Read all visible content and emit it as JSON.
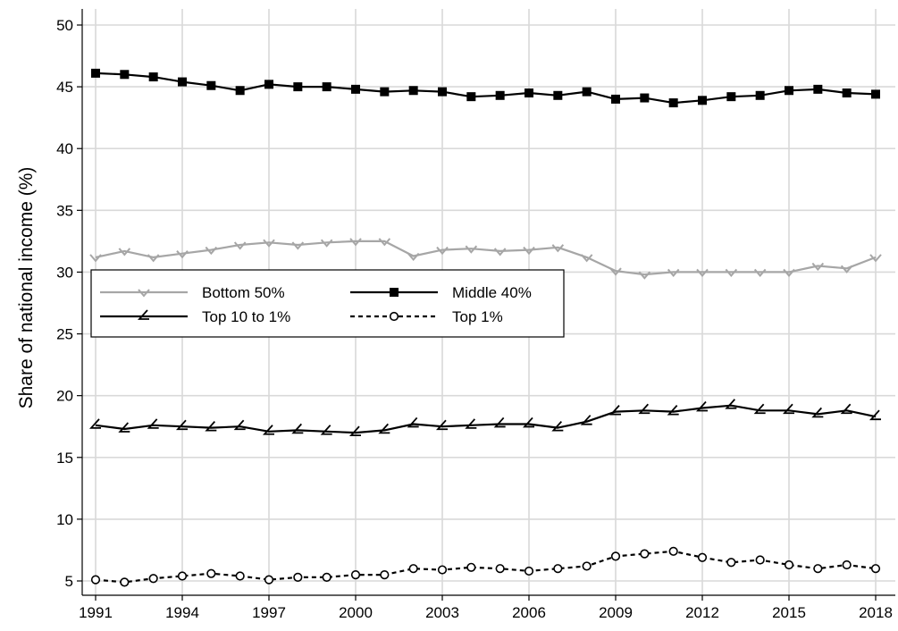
{
  "chart_data": {
    "type": "line",
    "title": "",
    "xlabel": "",
    "ylabel": "Share of national income (%)",
    "x": [
      1991,
      1992,
      1993,
      1994,
      1995,
      1996,
      1997,
      1998,
      1999,
      2000,
      2001,
      2002,
      2003,
      2004,
      2005,
      2006,
      2007,
      2008,
      2009,
      2010,
      2011,
      2012,
      2013,
      2014,
      2015,
      2016,
      2017,
      2018
    ],
    "x_ticks": [
      "1991",
      "1994",
      "1997",
      "2000",
      "2003",
      "2006",
      "2009",
      "2012",
      "2015",
      "2018"
    ],
    "y_ticks": [
      "5",
      "10",
      "15",
      "20",
      "25",
      "30",
      "35",
      "40",
      "45",
      "50"
    ],
    "xlim": [
      1991,
      2018
    ],
    "ylim": [
      5,
      50
    ],
    "grid": true,
    "legend_position": "middle-left",
    "series": [
      {
        "name": "Bottom 50%",
        "color": "#a6a6a6",
        "marker": "diamond-open",
        "line_style": "solid",
        "values": [
          31.2,
          31.7,
          31.2,
          31.5,
          31.8,
          32.2,
          32.4,
          32.2,
          32.4,
          32.5,
          32.5,
          31.3,
          31.8,
          31.9,
          31.7,
          31.8,
          32.0,
          31.2,
          30.1,
          29.8,
          30.0,
          30.0,
          30.0,
          30.0,
          30.0,
          30.5,
          30.3,
          31.2
        ]
      },
      {
        "name": "Middle 40%",
        "color": "#000000",
        "marker": "square-filled",
        "line_style": "solid",
        "values": [
          46.1,
          46.0,
          45.8,
          45.4,
          45.1,
          44.7,
          45.2,
          45.0,
          45.0,
          44.8,
          44.6,
          44.7,
          44.6,
          44.2,
          44.3,
          44.5,
          44.3,
          44.6,
          44.0,
          44.1,
          43.7,
          43.9,
          44.2,
          44.3,
          44.7,
          44.8,
          44.5,
          44.4
        ]
      },
      {
        "name": "Top 10 to 1%",
        "color": "#000000",
        "marker": "angle",
        "line_style": "solid",
        "values": [
          17.6,
          17.3,
          17.6,
          17.5,
          17.4,
          17.5,
          17.1,
          17.2,
          17.1,
          17.0,
          17.2,
          17.7,
          17.5,
          17.6,
          17.7,
          17.7,
          17.4,
          17.9,
          18.7,
          18.8,
          18.7,
          19.0,
          19.2,
          18.8,
          18.8,
          18.5,
          18.8,
          18.3
        ]
      },
      {
        "name": "Top 1%",
        "color": "#000000",
        "marker": "circle-open",
        "line_style": "dashed",
        "values": [
          5.1,
          4.9,
          5.2,
          5.4,
          5.6,
          5.4,
          5.1,
          5.3,
          5.3,
          5.5,
          5.5,
          6.0,
          5.9,
          6.1,
          6.0,
          5.8,
          6.0,
          6.2,
          7.0,
          7.2,
          7.4,
          6.9,
          6.5,
          6.7,
          6.3,
          6.0,
          6.3,
          6.0
        ]
      }
    ]
  }
}
